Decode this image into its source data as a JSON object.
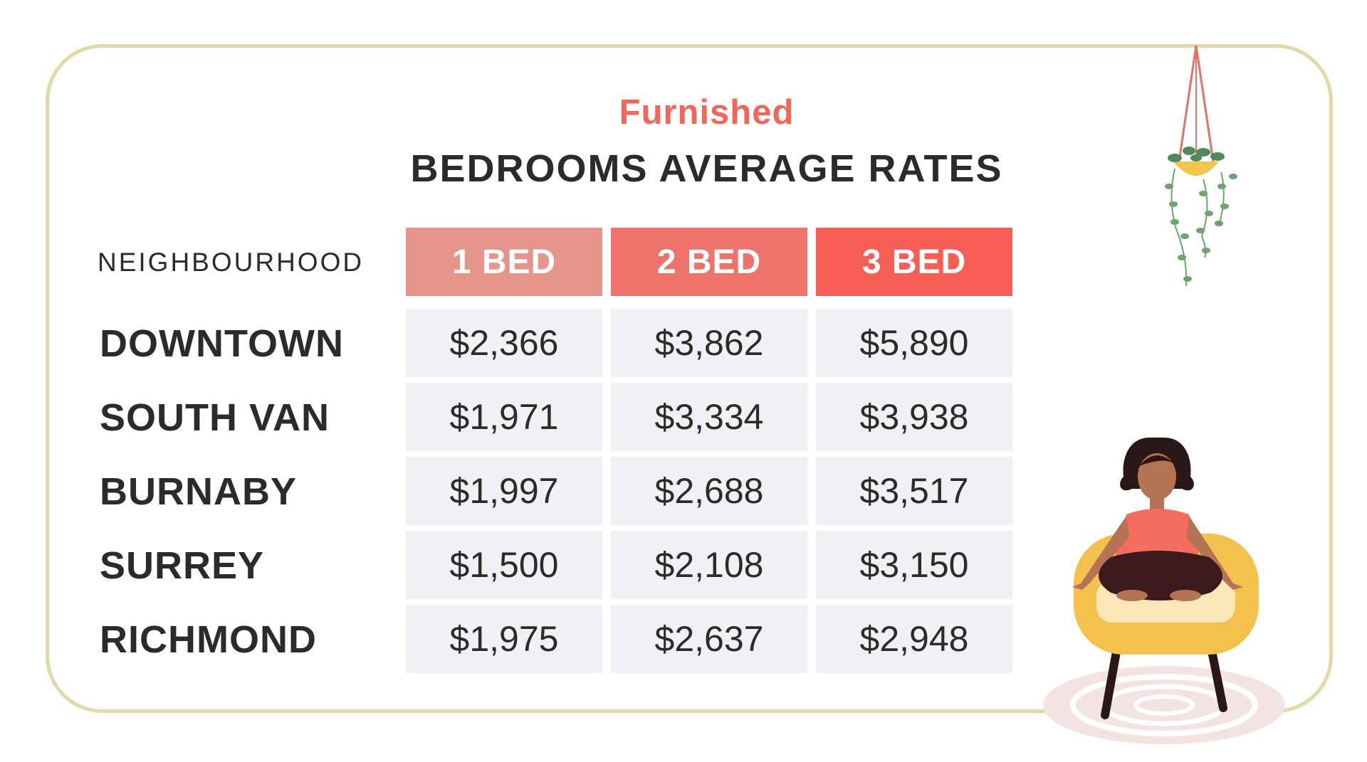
{
  "chart_data": {
    "type": "table",
    "subtitle": "Furnished",
    "title": "BEDROOMS AVERAGE RATES",
    "row_header": "NEIGHBOURHOOD",
    "columns": [
      {
        "label": "1 BED",
        "color": "#e5958a"
      },
      {
        "label": "2 BED",
        "color": "#ed736b"
      },
      {
        "label": "3 BED",
        "color": "#f75e55"
      }
    ],
    "rows": [
      {
        "label": "DOWNTOWN",
        "values": [
          "$2,366",
          "$3,862",
          "$5,890"
        ]
      },
      {
        "label": "SOUTH VAN",
        "values": [
          "$1,971",
          "$3,334",
          "$3,938"
        ]
      },
      {
        "label": "BURNABY",
        "values": [
          "$1,997",
          "$2,688",
          "$3,517"
        ]
      },
      {
        "label": "SURREY",
        "values": [
          "$1,500",
          "$2,108",
          "$3,150"
        ]
      },
      {
        "label": "RICHMOND",
        "values": [
          "$1,975",
          "$2,637",
          "$2,948"
        ]
      }
    ]
  }
}
